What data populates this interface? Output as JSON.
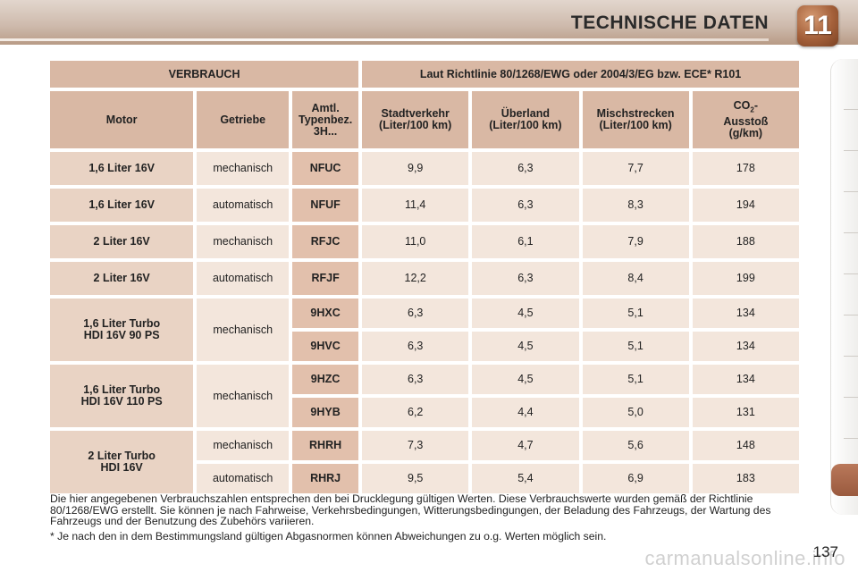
{
  "header": {
    "title": "TECHNISCHE DATEN",
    "chapter": "11"
  },
  "table": {
    "title_left": "VERBRAUCH",
    "title_right": "Laut Richtlinie 80/1268/EWG oder 2004/3/EG bzw. ECE* R101",
    "columns": {
      "motor": "Motor",
      "getriebe": "Getriebe",
      "typ_l1": "Amtl.",
      "typ_l2": "Typenbez.",
      "typ_l3": "3H...",
      "stadt_l1": "Stadtverkehr",
      "stadt_l2": "(Liter/100 km)",
      "ueber_l1": "Überland",
      "ueber_l2": "(Liter/100 km)",
      "misch_l1": "Mischstrecken",
      "misch_l2": "(Liter/100 km)",
      "co2_a": "CO",
      "co2_sub": "2",
      "co2_b": "-",
      "co2_l2": "Ausstoß",
      "co2_l3": "(g/km)"
    },
    "rows": [
      {
        "motor": "1,6 Liter 16V",
        "getriebe": "mechanisch",
        "typ": "NFUC",
        "stadt": "9,9",
        "ueber": "6,3",
        "misch": "7,7",
        "co2": "178"
      },
      {
        "motor": "1,6 Liter 16V",
        "getriebe": "automatisch",
        "typ": "NFUF",
        "stadt": "11,4",
        "ueber": "6,3",
        "misch": "8,3",
        "co2": "194"
      },
      {
        "motor": "2 Liter 16V",
        "getriebe": "mechanisch",
        "typ": "RFJC",
        "stadt": "11,0",
        "ueber": "6,1",
        "misch": "7,9",
        "co2": "188"
      },
      {
        "motor": "2 Liter 16V",
        "getriebe": "automatisch",
        "typ": "RFJF",
        "stadt": "12,2",
        "ueber": "6,3",
        "misch": "8,4",
        "co2": "199"
      }
    ],
    "groups": [
      {
        "motor_l1": "1,6 Liter Turbo",
        "motor_l2": "HDI 16V 90 PS",
        "getriebe": "mechanisch",
        "rows": [
          {
            "typ": "9HXC",
            "stadt": "6,3",
            "ueber": "4,5",
            "misch": "5,1",
            "co2": "134"
          },
          {
            "typ": "9HVC",
            "stadt": "6,3",
            "ueber": "4,5",
            "misch": "5,1",
            "co2": "134"
          }
        ]
      },
      {
        "motor_l1": "1,6 Liter Turbo",
        "motor_l2": "HDI 16V 110 PS",
        "getriebe": "mechanisch",
        "rows": [
          {
            "typ": "9HZC",
            "stadt": "6,3",
            "ueber": "4,5",
            "misch": "5,1",
            "co2": "134"
          },
          {
            "typ": "9HYB",
            "stadt": "6,2",
            "ueber": "4,4",
            "misch": "5,0",
            "co2": "131"
          }
        ]
      },
      {
        "motor_l1": "2 Liter Turbo",
        "motor_l2": "HDI 16V",
        "rows": [
          {
            "getriebe": "mechanisch",
            "typ": "RHRH",
            "stadt": "7,3",
            "ueber": "4,7",
            "misch": "5,6",
            "co2": "148"
          },
          {
            "getriebe": "automatisch",
            "typ": "RHRJ",
            "stadt": "9,5",
            "ueber": "5,4",
            "misch": "6,9",
            "co2": "183"
          }
        ]
      }
    ]
  },
  "footnotes": {
    "main": "Die hier angegebenen Verbrauchszahlen entsprechen den bei Drucklegung gültigen Werten. Diese Verbrauchswerte wurden gemäß der Richtlinie 80/1268/EWG erstellt. Sie können je nach Fahrweise, Verkehrsbedingungen, Witterungsbedingungen, der Beladung des Fahrzeugs, der Wartung des Fahrzeugs und der Benutzung des Zubehörs variieren.",
    "asterisk": "* Je nach den in dem Bestimmungsland gültigen Abgasnormen können Abweichungen zu o.g. Werten möglich sein."
  },
  "page_number": "137",
  "watermark": "carmanualsonline.info",
  "colors": {
    "header_cell": "#d9b8a4",
    "code_cell": "#e2c0ac",
    "value_cell": "#f3e6dc",
    "badge": "#a4603a"
  }
}
